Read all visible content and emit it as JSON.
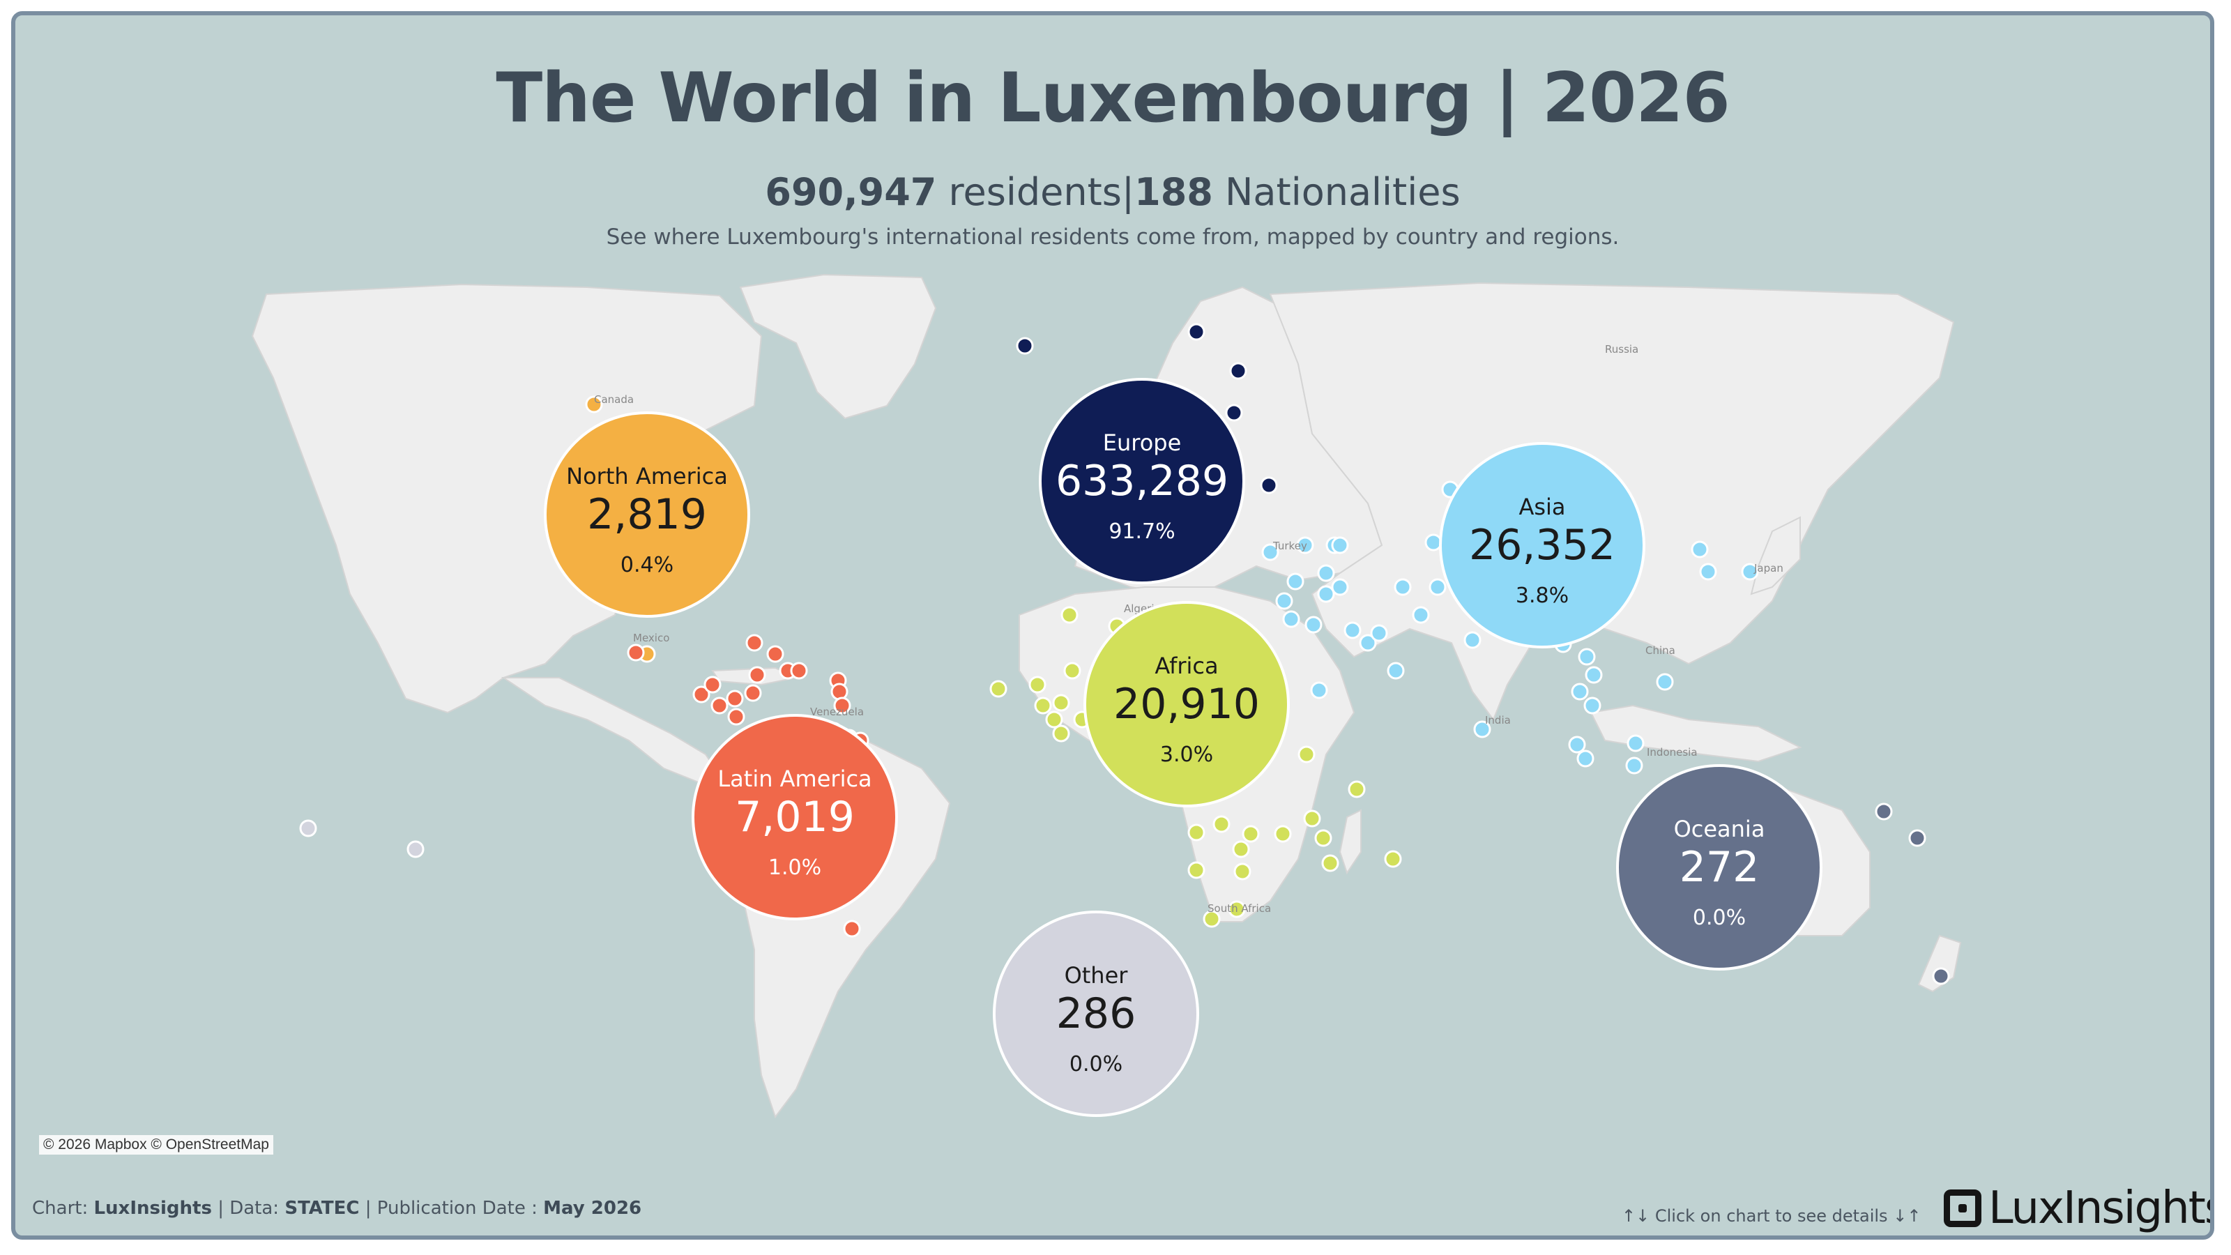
{
  "header": {
    "title": "The World in Luxembourg | 2026",
    "residents_count": "690,947",
    "residents_label": "residents",
    "separator": "|",
    "nationalities_count": "188",
    "nationalities_label": "Nationalities",
    "description": "See where Luxembourg's international residents come from, mapped by country and regions."
  },
  "regions": [
    {
      "name": "North America",
      "value": "2,819",
      "share": "0.4%",
      "color": "#f4b043",
      "text_color": "#1b1b1b"
    },
    {
      "name": "Europe",
      "value": "633,289",
      "share": "91.7%",
      "color": "#0f1d55",
      "text_color": "#ffffff"
    },
    {
      "name": "Asia",
      "value": "26,352",
      "share": "3.8%",
      "color": "#8fd9f7",
      "text_color": "#1b1b1b"
    },
    {
      "name": "Africa",
      "value": "20,910",
      "share": "3.0%",
      "color": "#d2e05a",
      "text_color": "#1b1b1b"
    },
    {
      "name": "Latin America",
      "value": "7,019",
      "share": "1.0%",
      "color": "#f0684a",
      "text_color": "#ffffff"
    },
    {
      "name": "Oceania",
      "value": "272",
      "share": "0.0%",
      "color": "#65718b",
      "text_color": "#ffffff"
    },
    {
      "name": "Other",
      "value": "286",
      "share": "0.0%",
      "color": "#d3d4de",
      "text_color": "#1b1b1b"
    }
  ],
  "map_labels": [
    "Canada",
    "Mexico",
    "Venezuela",
    "Algeria",
    "Turkey",
    "Russia",
    "China",
    "Japan",
    "India",
    "Indonesia",
    "South Africa"
  ],
  "map": {
    "ocean_color": "#c0d2d2",
    "land_color": "#eeeeee",
    "attribution": "© 2026 Mapbox © OpenStreetMap"
  },
  "footer": {
    "chart_prefix": "Chart:",
    "chart_author": "LuxInsights",
    "data_prefix": "| Data:",
    "data_source": "STATEC",
    "pub_prefix": "| Publication Date :",
    "pub_date": "May 2026",
    "hint_prefix": "↑↓",
    "hint": "Click on chart to see details",
    "hint_suffix": "↓↑"
  },
  "brand": {
    "logo_text": "LuxInsights"
  }
}
